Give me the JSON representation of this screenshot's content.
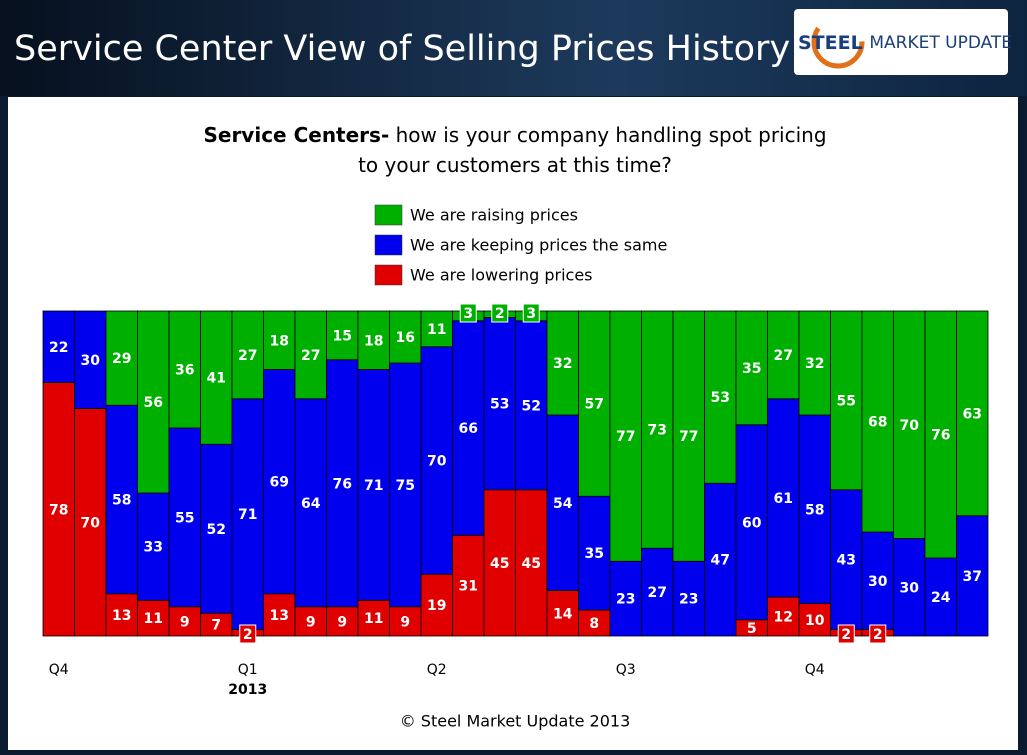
{
  "header": {
    "title": "Service Center View of Selling Prices History",
    "logo_bold": "STEEL",
    "logo_rest": "MARKET UPDATE"
  },
  "chart_data": {
    "type": "stacked-bar",
    "title_bold": "Service Centers-",
    "title": "how is your company handling spot pricing to your customers at this time?",
    "categories": [
      "Q4",
      null,
      null,
      null,
      null,
      null,
      "Q1",
      null,
      null,
      null,
      null,
      null,
      "Q2",
      null,
      null,
      null,
      null,
      null,
      "Q3",
      null,
      null,
      null,
      null,
      null,
      "Q4",
      null,
      null,
      null,
      null,
      null
    ],
    "x_sublabels": [
      null,
      null,
      null,
      null,
      null,
      null,
      "2013",
      null,
      null,
      null,
      null,
      null,
      null,
      null,
      null,
      null,
      null,
      null,
      null,
      null,
      null,
      null,
      null,
      null,
      null,
      null,
      null,
      null,
      null,
      null
    ],
    "ylim": [
      0,
      100
    ],
    "series": [
      {
        "name": "We are raising prices",
        "color": "#00b000",
        "values": [
          0,
          0,
          29,
          56,
          36,
          41,
          27,
          18,
          27,
          15,
          18,
          16,
          11,
          3,
          2,
          3,
          32,
          57,
          77,
          73,
          77,
          53,
          35,
          27,
          32,
          55,
          68,
          70,
          76,
          63
        ]
      },
      {
        "name": "We are keeping prices the same",
        "color": "#0000ee",
        "values": [
          22,
          30,
          58,
          33,
          55,
          52,
          71,
          69,
          64,
          76,
          71,
          75,
          70,
          66,
          53,
          52,
          54,
          35,
          23,
          27,
          23,
          47,
          60,
          61,
          58,
          43,
          30,
          30,
          24,
          37
        ]
      },
      {
        "name": "We are lowering prices",
        "color": "#e00000",
        "values": [
          78,
          70,
          13,
          11,
          9,
          7,
          2,
          13,
          9,
          9,
          11,
          9,
          19,
          31,
          45,
          45,
          14,
          8,
          0,
          0,
          0,
          0,
          5,
          12,
          10,
          2,
          2,
          0,
          0,
          0
        ]
      }
    ]
  },
  "footer": "© Steel Market Update 2013"
}
